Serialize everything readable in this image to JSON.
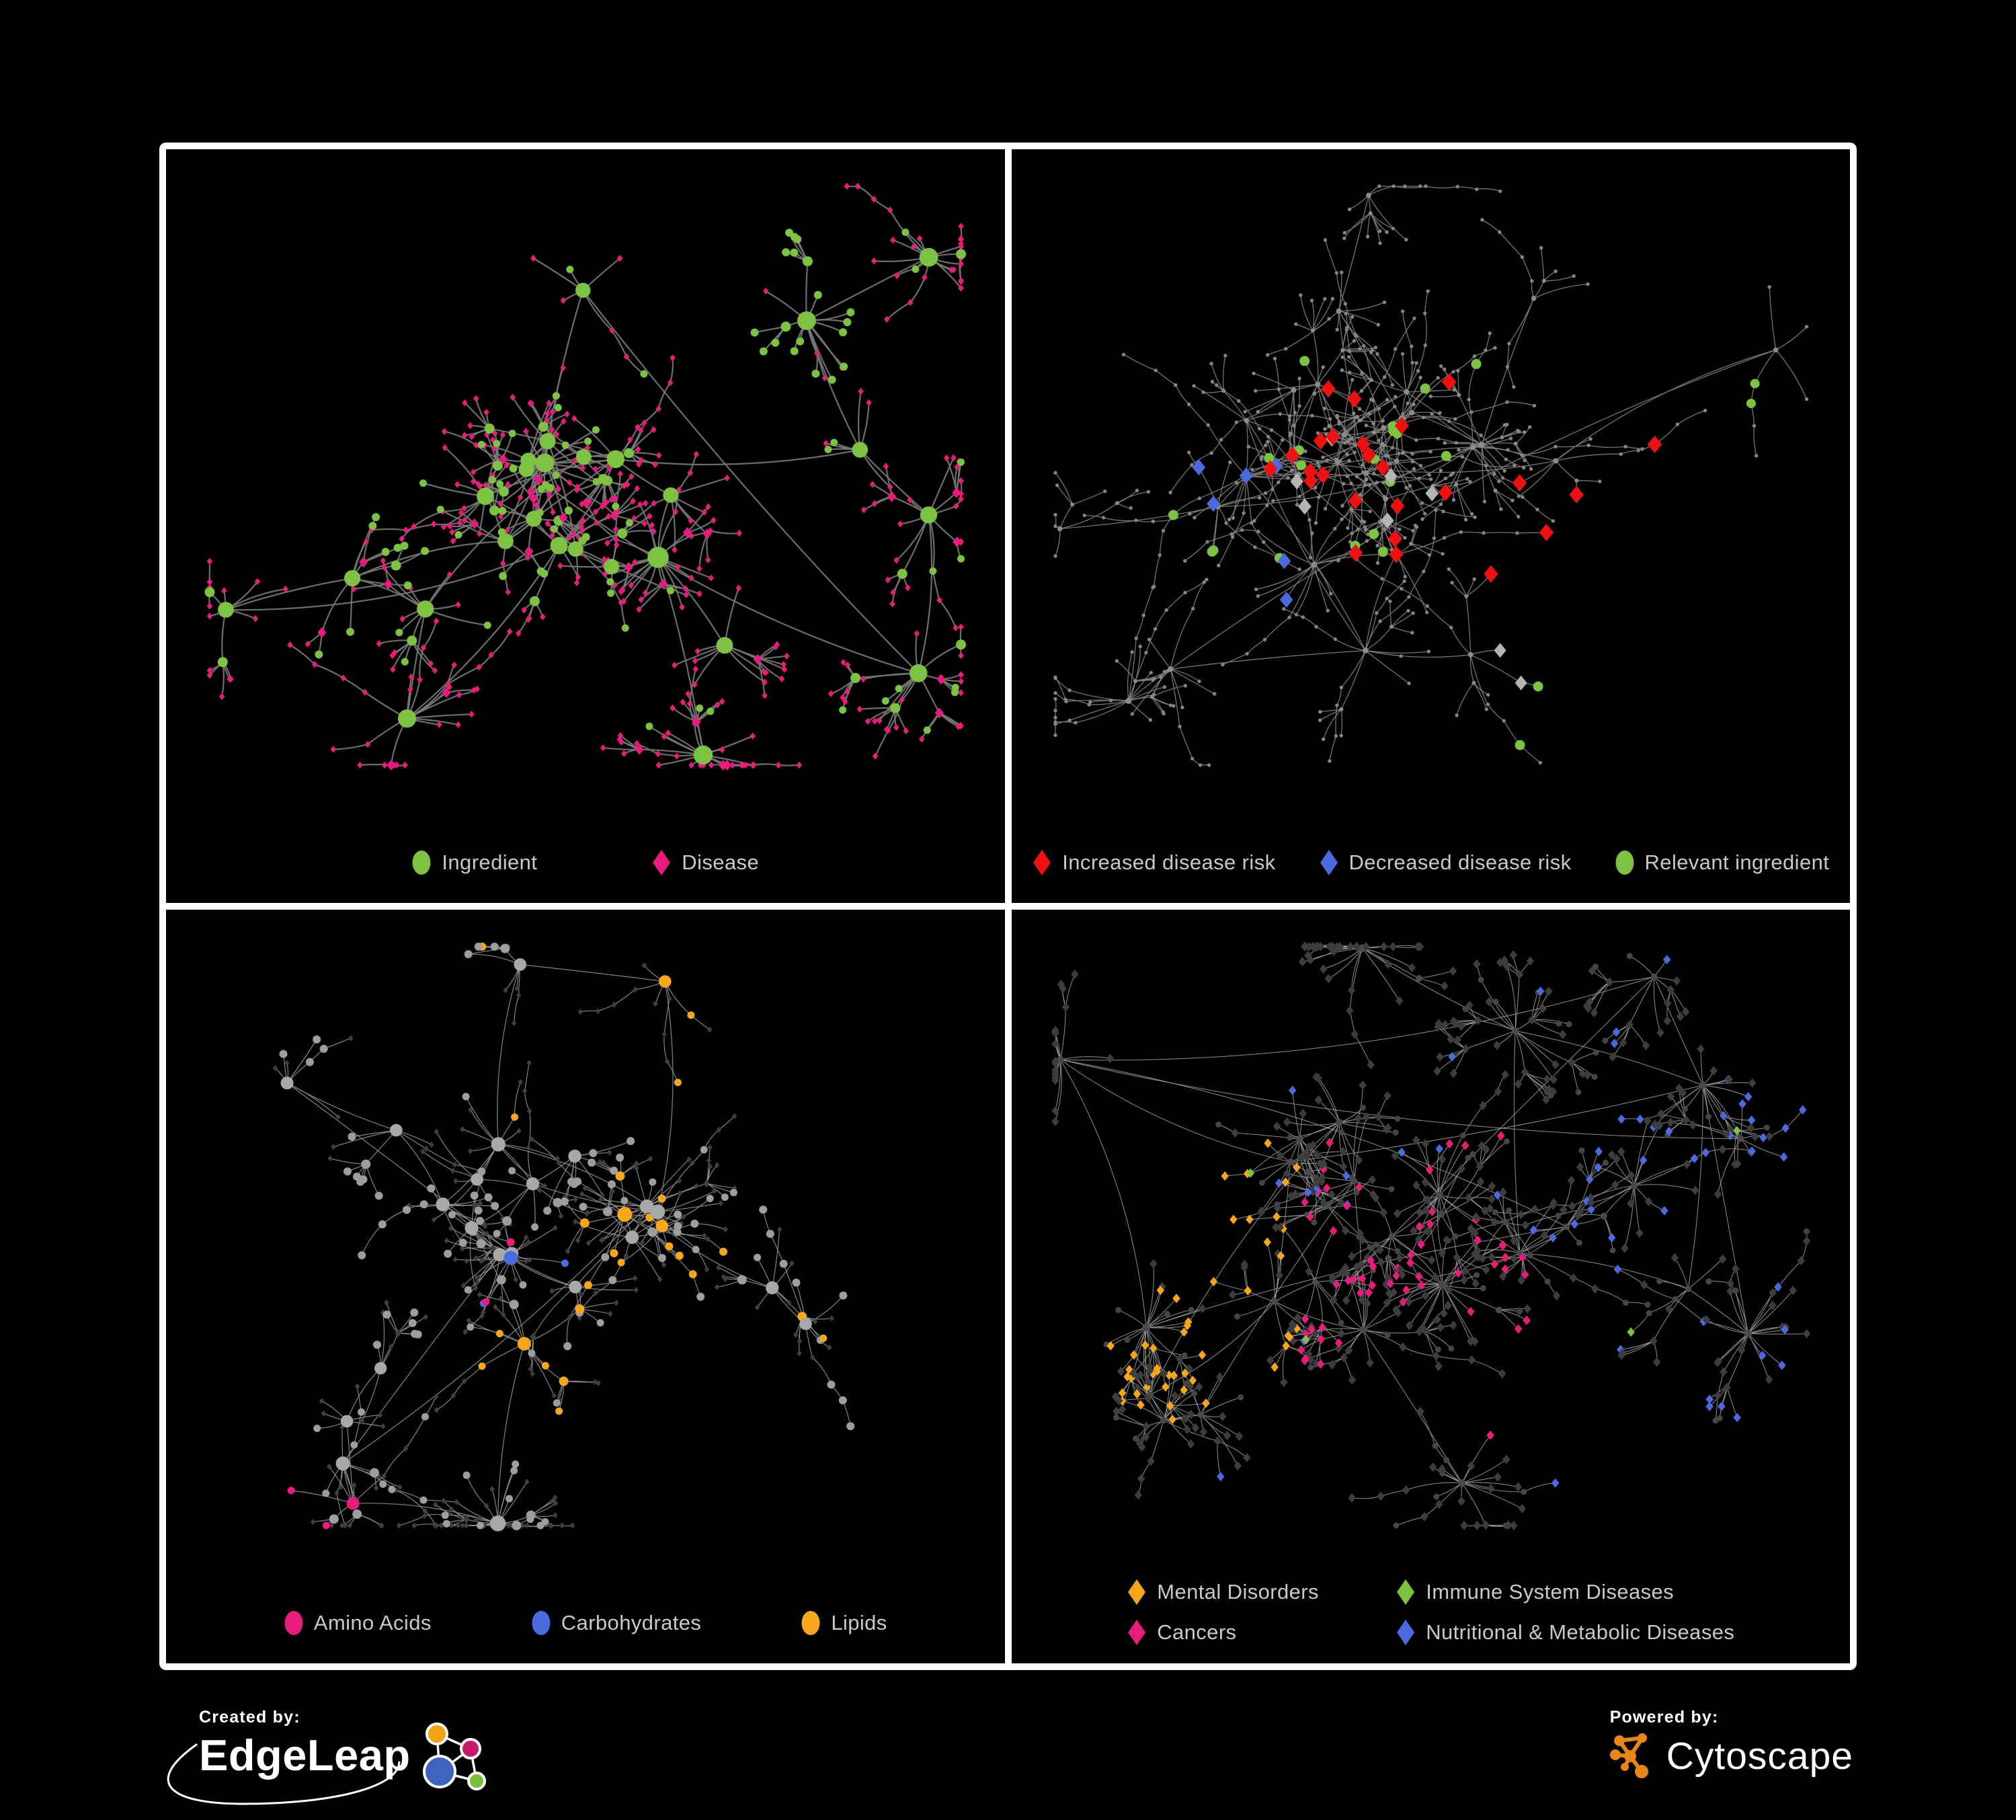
{
  "page": {
    "background": "#000000",
    "frame_color": "#ffffff"
  },
  "colors": {
    "ingredient_green": "#7dc242",
    "disease_pink": "#e81c7c",
    "risk_red": "#ee1111",
    "risk_blue": "#4a6be0",
    "neutral_gray": "#b5b5b5",
    "lipid_orange": "#f6a71c",
    "legend_text": "#c9c9c9"
  },
  "panels": [
    {
      "id": "ingredients-diseases",
      "legend": {
        "columns": 1,
        "gap": 170,
        "items": [
          {
            "label": "Ingredient",
            "shape": "circle",
            "color": "#7dc242"
          },
          {
            "label": "Disease",
            "shape": "diamond",
            "color": "#e81c7c"
          }
        ]
      },
      "network": {
        "seed": 9,
        "clusters": 26,
        "centerBias": 0.5,
        "leafMin": 5,
        "leafMax": 22,
        "subProb": 0.16,
        "chainProb": 0.18,
        "chainMax": 3,
        "extraLinks": 10,
        "edge": {
          "color": "#777777",
          "width": 2.2
        },
        "roles": {
          "hub": {
            "shape": "circle",
            "color": "#7dc242",
            "rMin": 9,
            "rMax": 17
          },
          "subhub": [
            {
              "shape": "circle",
              "color": "#7dc242",
              "r": 7.5,
              "w": 0.5
            },
            {
              "shape": "diamond",
              "color": "#e81c7c",
              "r": 8,
              "w": 0.5
            }
          ],
          "leafSets": [
            {
              "w": 0.62,
              "items": [
                {
                  "shape": "diamond",
                  "color": "#e81c7c",
                  "r": 5.2,
                  "w": 0.85
                },
                {
                  "shape": "circle",
                  "color": "#7dc242",
                  "r": 5.5,
                  "w": 0.15
                }
              ]
            },
            {
              "w": 0.22,
              "items": [
                {
                  "shape": "diamond",
                  "color": "#e81c7c",
                  "r": 5.2,
                  "w": 1
                }
              ]
            },
            {
              "w": 0.16,
              "items": [
                {
                  "shape": "circle",
                  "color": "#7dc242",
                  "r": 6,
                  "w": 0.8
                },
                {
                  "shape": "diamond",
                  "color": "#e81c7c",
                  "r": 5,
                  "w": 0.2
                }
              ]
            }
          ]
        }
      }
    },
    {
      "id": "disease-risk",
      "legend": {
        "columns": 1,
        "gap": 64,
        "items": [
          {
            "label": "Increased disease risk",
            "shape": "diamond",
            "color": "#ee1111"
          },
          {
            "label": "Decreased disease risk",
            "shape": "diamond",
            "color": "#4a6be0"
          },
          {
            "label": "Relevant ingredient",
            "shape": "circle",
            "color": "#7dc242"
          }
        ]
      },
      "network": {
        "seed": 27,
        "clusters": 30,
        "centerBias": 0.42,
        "leafMin": 4,
        "leafMax": 16,
        "subProb": 0.14,
        "chainProb": 0.4,
        "chainMax": 4,
        "extraLinks": 8,
        "edge": {
          "color": "#7e7e7e",
          "width": 1.3
        },
        "roles": {
          "hub": {
            "shape": "circle",
            "color": "#8c8c8c",
            "rMin": 3.5,
            "rMax": 5
          },
          "subhub": [
            {
              "shape": "circle",
              "color": "#8c8c8c",
              "r": 3,
              "w": 1
            }
          ],
          "leafSets": [
            {
              "w": 1,
              "items": [
                {
                  "shape": "circle",
                  "color": "#858585",
                  "r": 2.7,
                  "w": 1
                }
              ]
            }
          ]
        },
        "highlights": [
          {
            "shape": "diamond",
            "color": "#ee1111",
            "r": 13,
            "count": 22,
            "region": [
              0.3,
              0.3,
              0.62,
              0.6
            ]
          },
          {
            "shape": "diamond",
            "color": "#ee1111",
            "r": 13,
            "count": 3,
            "region": [
              0.62,
              0.38,
              0.8,
              0.52
            ]
          },
          {
            "shape": "diamond",
            "color": "#ee1111",
            "r": 12,
            "count": 3,
            "region": [
              0.65,
              0.7,
              0.8,
              0.84
            ]
          },
          {
            "shape": "diamond",
            "color": "#4a6be0",
            "r": 12,
            "count": 6,
            "region": [
              0.18,
              0.42,
              0.33,
              0.6
            ]
          },
          {
            "shape": "diamond",
            "color": "#4a6be0",
            "r": 12,
            "count": 2,
            "region": [
              0.78,
              0.24,
              0.88,
              0.33
            ]
          },
          {
            "shape": "diamond",
            "color": "#b5b5b5",
            "r": 12,
            "count": 6,
            "region": [
              0.22,
              0.33,
              0.6,
              0.62
            ]
          },
          {
            "shape": "diamond",
            "color": "#b5b5b5",
            "r": 11,
            "count": 2,
            "region": [
              0.58,
              0.6,
              0.74,
              0.74
            ]
          },
          {
            "shape": "circle",
            "color": "#7dc242",
            "r": 7.5,
            "count": 20,
            "region": [
              0.18,
              0.28,
              0.62,
              0.58
            ]
          },
          {
            "shape": "circle",
            "color": "#7dc242",
            "r": 7.5,
            "count": 5,
            "region": [
              0.6,
              0.58,
              0.76,
              0.8
            ]
          },
          {
            "shape": "circle",
            "color": "#7dc242",
            "r": 7,
            "count": 2,
            "region": [
              0.84,
              0.28,
              0.96,
              0.44
            ]
          }
        ]
      }
    },
    {
      "id": "ingredient-classes",
      "legend": {
        "columns": 1,
        "gap": 148,
        "items": [
          {
            "label": "Amino Acids",
            "shape": "circle",
            "color": "#e81c7c"
          },
          {
            "label": "Carbohydrates",
            "shape": "circle",
            "color": "#4a6be0"
          },
          {
            "label": "Lipids",
            "shape": "circle",
            "color": "#f6a71c"
          }
        ]
      },
      "network": {
        "seed": 55,
        "clusters": 27,
        "centerBias": 0.5,
        "leafMin": 5,
        "leafMax": 20,
        "subProb": 0.17,
        "chainProb": 0.2,
        "chainMax": 3,
        "extraLinks": 9,
        "edge": {
          "color": "#8f8f8f",
          "width": 1.2
        },
        "roles": {
          "hub": {
            "shape": "circle",
            "color": "#a8a8a8",
            "rMin": 8,
            "rMax": 13
          },
          "subhub": [
            {
              "shape": "circle",
              "color": "#9e9e9e",
              "r": 7,
              "w": 0.8
            },
            {
              "shape": "diamond",
              "color": "#3f3f3f",
              "r": 6,
              "w": 0.2
            }
          ],
          "leafSets": [
            {
              "w": 0.55,
              "items": [
                {
                  "shape": "diamond",
                  "color": "#3f3f3f",
                  "r": 4.6,
                  "w": 0.8
                },
                {
                  "shape": "circle",
                  "color": "#9e9e9e",
                  "r": 5.5,
                  "w": 0.2
                }
              ]
            },
            {
              "w": 0.45,
              "items": [
                {
                  "shape": "circle",
                  "color": "#9e9e9e",
                  "r": 6,
                  "w": 0.55
                },
                {
                  "shape": "diamond",
                  "color": "#3f3f3f",
                  "r": 4.6,
                  "w": 0.45
                }
              ]
            }
          ]
        },
        "clusterColors": [
          {
            "color": "#f6a71c",
            "prob": 0.2,
            "apply": 0.6
          },
          {
            "color": "#e81c7c",
            "prob": 0.09,
            "apply": 0.35
          },
          {
            "color": "#4a6be0",
            "prob": 0.07,
            "apply": 0.3
          }
        ],
        "colorShape": "circle"
      }
    },
    {
      "id": "disease-classes",
      "legend": {
        "columns": 2,
        "col_template": "400px auto",
        "items": [
          {
            "label": "Mental Disorders",
            "shape": "diamond",
            "color": "#f6a71c"
          },
          {
            "label": "Immune System Diseases",
            "shape": "diamond",
            "color": "#7dc242"
          },
          {
            "label": "Cancers",
            "shape": "diamond",
            "color": "#e81c7c"
          },
          {
            "label": "Nutritional & Metabolic Diseases",
            "shape": "diamond",
            "color": "#4a6be0"
          }
        ]
      },
      "network": {
        "seed": 81,
        "clusters": 30,
        "centerBias": 0.45,
        "leafMin": 6,
        "leafMax": 24,
        "subProb": 0.2,
        "chainProb": 0.15,
        "chainMax": 3,
        "extraLinks": 10,
        "edge": {
          "color": "#9b9b9b",
          "width": 1
        },
        "roles": {
          "hub": {
            "shape": "circle",
            "color": "#4a4a4a",
            "rMin": 4,
            "rMax": 6
          },
          "subhub": [
            {
              "shape": "diamond",
              "color": "#3d3d3d",
              "r": 7,
              "w": 0.85
            },
            {
              "shape": "circle",
              "color": "#4a4a4a",
              "r": 5,
              "w": 0.15
            }
          ],
          "leafSets": [
            {
              "w": 1,
              "items": [
                {
                  "shape": "diamond",
                  "color": "#3d3d3d",
                  "r": 7,
                  "w": 0.88
                },
                {
                  "shape": "circle",
                  "color": "#454545",
                  "r": 4.5,
                  "w": 0.12
                }
              ]
            }
          ]
        },
        "regionColors": [
          {
            "region": [
              0.0,
              0.3,
              0.34,
              0.68
            ],
            "color": "#f6a71c",
            "prob": 0.5
          },
          {
            "region": [
              0.34,
              0.3,
              0.62,
              0.72
            ],
            "color": "#e81c7c",
            "prob": 0.32
          },
          {
            "region": [
              0.62,
              0.0,
              1.0,
              1.0
            ],
            "color": "#4a6be0",
            "prob": 0.28
          },
          {
            "region": [
              0.0,
              0.0,
              1.0,
              1.0
            ],
            "color": "#4a6be0",
            "prob": 0.05
          },
          {
            "region": [
              0.0,
              0.0,
              1.0,
              1.0
            ],
            "color": "#7dc242",
            "prob": 0.015
          }
        ],
        "colorShape": "diamond"
      }
    }
  ],
  "footer": {
    "created_by": {
      "label": "Created by:",
      "brand": "EdgeLeap",
      "glyph_colors": {
        "orange": "#f0a513",
        "magenta": "#c6196e",
        "blue": "#3f63bc",
        "green": "#76bf3c"
      }
    },
    "powered_by": {
      "label": "Powered by:",
      "brand": "Cytoscape",
      "glyph_color": "#e8861a"
    }
  }
}
